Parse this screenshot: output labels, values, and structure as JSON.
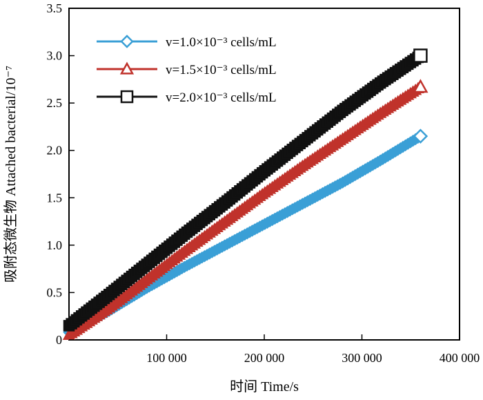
{
  "chart_data": {
    "type": "scatter",
    "xlabel": "时间 Time/s",
    "ylabel": "吸附态微生物 Attached bacterial/10⁻⁷",
    "xlim": [
      0,
      400000
    ],
    "ylim": [
      0,
      3.5
    ],
    "x_ticks": [
      "100 000",
      "200 000",
      "300 000",
      "400 000"
    ],
    "y_ticks": [
      "0",
      "0.5",
      "1.0",
      "1.5",
      "2.0",
      "2.5",
      "3.0",
      "3.5"
    ],
    "grid": false,
    "legend_position": "top-left",
    "series": [
      {
        "name": "v=1.0×10⁻³ cells/mL",
        "color": "#3a9fd6",
        "marker": "diamond",
        "x": [
          0,
          40000,
          80000,
          120000,
          160000,
          200000,
          240000,
          280000,
          320000,
          360000
        ],
        "y": [
          0.08,
          0.3,
          0.55,
          0.78,
          1.0,
          1.22,
          1.44,
          1.66,
          1.9,
          2.15
        ]
      },
      {
        "name": "v=1.5×10⁻³ cells/mL",
        "color": "#c0322b",
        "marker": "triangle",
        "x": [
          0,
          40000,
          80000,
          120000,
          160000,
          200000,
          240000,
          280000,
          320000,
          360000
        ],
        "y": [
          0.05,
          0.33,
          0.64,
          0.95,
          1.25,
          1.55,
          1.84,
          2.12,
          2.4,
          2.67
        ]
      },
      {
        "name": "v=2.0×10⁻³ cells/mL",
        "color": "#111111",
        "marker": "square",
        "x": [
          0,
          40000,
          80000,
          120000,
          160000,
          200000,
          240000,
          280000,
          320000,
          360000
        ],
        "y": [
          0.15,
          0.47,
          0.8,
          1.13,
          1.45,
          1.78,
          2.1,
          2.42,
          2.72,
          3.0
        ]
      }
    ]
  }
}
